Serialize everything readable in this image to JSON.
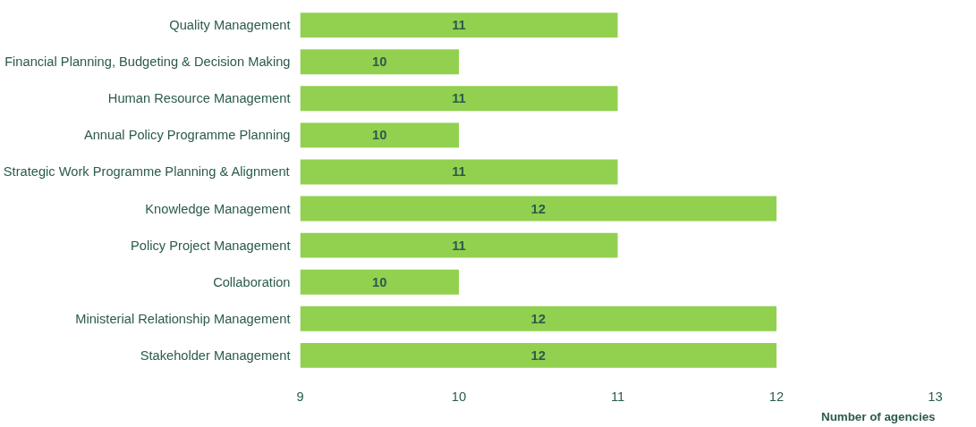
{
  "chart_data": {
    "type": "bar",
    "orientation": "horizontal",
    "xlabel": "Number of agencies",
    "categories": [
      "Quality Management",
      "Financial Planning, Budgeting & Decision Making",
      "Human Resource Management",
      "Annual Policy Programme Planning",
      "Strategic Work Programme Planning & Alignment",
      "Knowledge Management",
      "Policy Project Management",
      "Collaboration",
      "Ministerial Relationship Management",
      "Stakeholder Management"
    ],
    "values": [
      11,
      10,
      11,
      10,
      11,
      12,
      11,
      10,
      12,
      12
    ],
    "color": "#92d050",
    "xlim": [
      9,
      13
    ],
    "xticks": [
      9,
      10,
      11,
      12,
      13
    ],
    "data_labels": true,
    "grid": false
  }
}
